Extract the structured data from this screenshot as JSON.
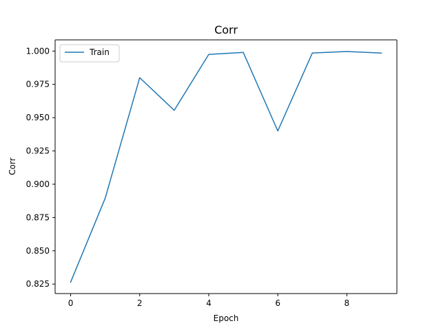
{
  "chart_data": {
    "type": "line",
    "title": "Corr",
    "xlabel": "Epoch",
    "ylabel": "Corr",
    "x": [
      0,
      1,
      2,
      3,
      4,
      5,
      6,
      7,
      8,
      9
    ],
    "series": [
      {
        "name": "Train",
        "color": "#1f77b4",
        "values": [
          0.8265,
          0.8895,
          0.98,
          0.9555,
          0.9975,
          0.999,
          0.94,
          0.9985,
          0.9997,
          0.9985
        ]
      }
    ],
    "xlim": [
      -0.45,
      9.45
    ],
    "ylim": [
      0.8179,
      1.0084
    ],
    "xticks": [
      0,
      2,
      4,
      6,
      8
    ],
    "xtick_labels": [
      "0",
      "2",
      "4",
      "6",
      "8"
    ],
    "yticks": [
      0.825,
      0.85,
      0.875,
      0.9,
      0.925,
      0.95,
      0.975,
      1.0
    ],
    "ytick_labels": [
      "0.825",
      "0.850",
      "0.875",
      "0.900",
      "0.925",
      "0.950",
      "0.975",
      "1.000"
    ],
    "grid": false,
    "legend_position": "upper-left"
  }
}
